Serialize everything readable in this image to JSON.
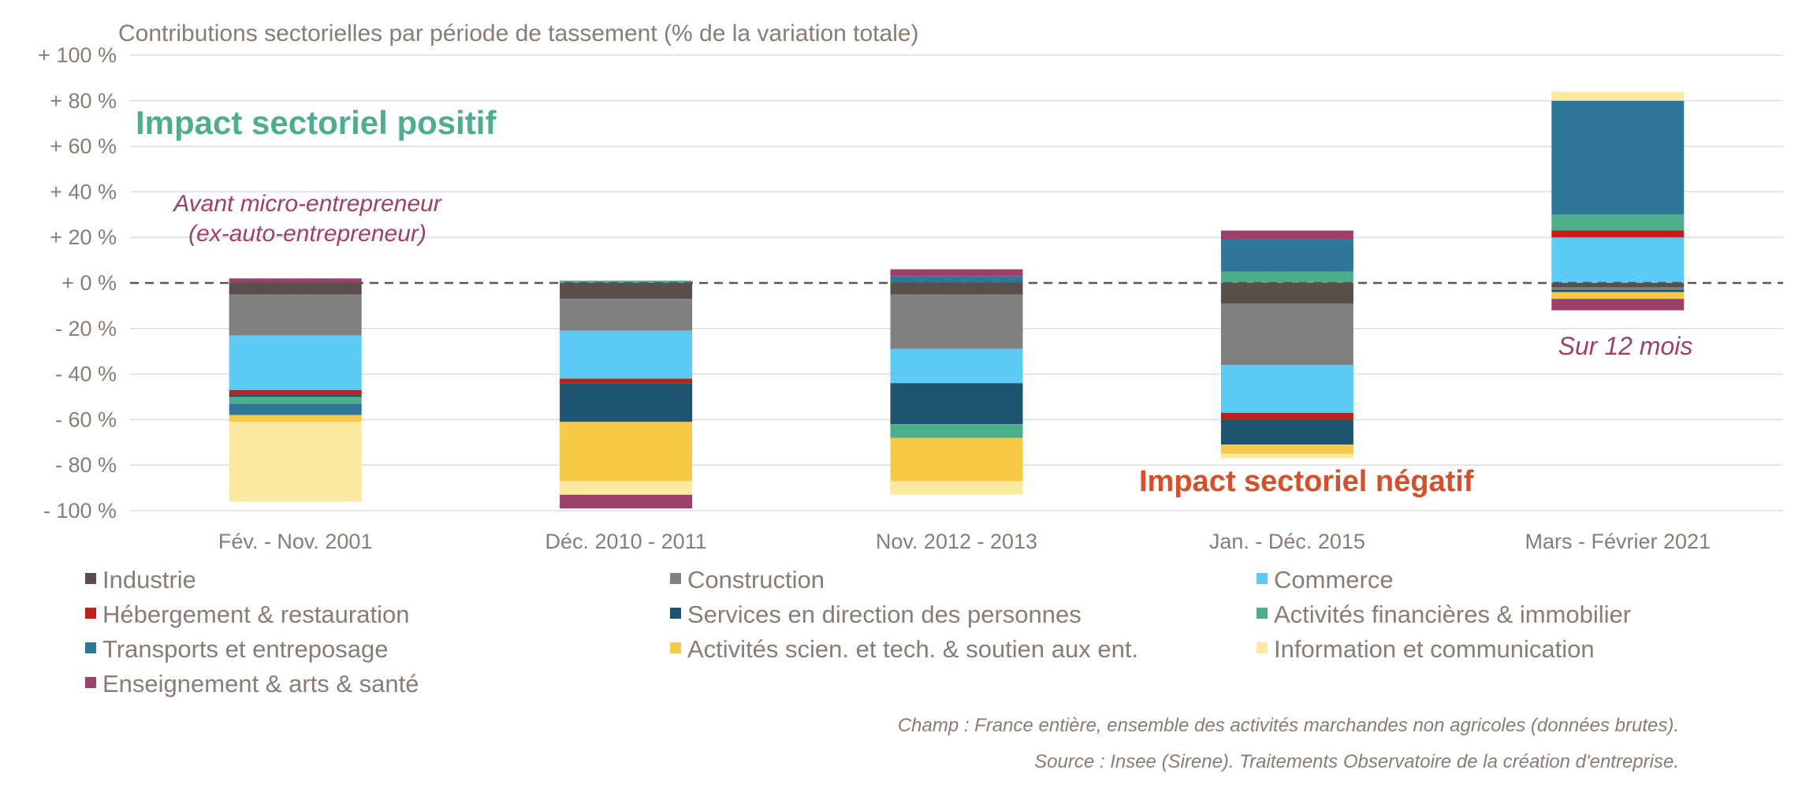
{
  "chart_data": {
    "type": "bar",
    "stacked": true,
    "title": "Contributions sectorielles par période de tassement (% de la variation totale)",
    "ylim": [
      -100,
      100
    ],
    "yticks": [
      100,
      80,
      60,
      40,
      20,
      0,
      -20,
      -40,
      -60,
      -80,
      -100
    ],
    "ytick_labels": [
      "+ 100 %",
      "+ 80 %",
      "+ 60 %",
      "+ 40 %",
      "+ 20 %",
      "+ 0 %",
      "- 20 %",
      "- 40 %",
      "- 60 %",
      "- 80 %",
      "- 100 %"
    ],
    "categories": [
      "Fév. - Nov. 2001",
      "Déc. 2010 - 2011",
      "Nov. 2012 - 2013",
      "Jan. - Déc. 2015",
      "Mars - Février 2021"
    ],
    "grid": true,
    "legend_position": "bottom",
    "series": [
      {
        "name": "Industrie",
        "color": "#5a4e4a",
        "values": [
          -5,
          -7,
          -5,
          -9,
          -2
        ]
      },
      {
        "name": "Construction",
        "color": "#808080",
        "values": [
          -18,
          -14,
          -24,
          -27,
          -1
        ]
      },
      {
        "name": "Commerce",
        "color": "#5bcbf5",
        "values": [
          -24,
          -21,
          -15,
          -21,
          20
        ]
      },
      {
        "name": "Hébergement & restauration",
        "color": "#c0201a",
        "values": [
          -2,
          -2,
          0,
          -3,
          3
        ]
      },
      {
        "name": "Services en direction des personnes",
        "color": "#1f5470",
        "values": [
          -1,
          -17,
          -18,
          -11,
          -1
        ]
      },
      {
        "name": "Activités financières & immobilier",
        "color": "#4caf8a",
        "values": [
          -3,
          1,
          -6,
          5,
          7
        ]
      },
      {
        "name": "Transports et entreposage",
        "color": "#2f7799",
        "values": [
          -5,
          0,
          3,
          14,
          50
        ]
      },
      {
        "name": "Activités scien. et tech. & soutien aux ent.",
        "color": "#f6ca45",
        "values": [
          -3,
          -26,
          -19,
          -4,
          -3
        ]
      },
      {
        "name": "Information et communication",
        "color": "#fbe9a0",
        "values": [
          -35,
          -6,
          -6,
          -2,
          4
        ]
      },
      {
        "name": "Enseignement & arts & santé",
        "color": "#9c3f6a",
        "values": [
          2,
          -6,
          3,
          4,
          -5
        ]
      }
    ]
  },
  "annotations": {
    "positive": "Impact sectoriel positif",
    "negative": "Impact sectoriel négatif",
    "before_line1": "Avant micro-entrepreneur",
    "before_line2": "(ex-auto-entrepreneur)",
    "twelve_months": "Sur 12 mois",
    "positive_color": "#4caf8a",
    "negative_color": "#d4502a",
    "italic_color": "#9c3f6a"
  },
  "notes": {
    "scope": "Champ : France entière, ensemble des activités marchandes non agricoles (données brutes).",
    "source": "Source : Insee (Sirene). Traitements Observatoire de la création d'entreprise."
  }
}
